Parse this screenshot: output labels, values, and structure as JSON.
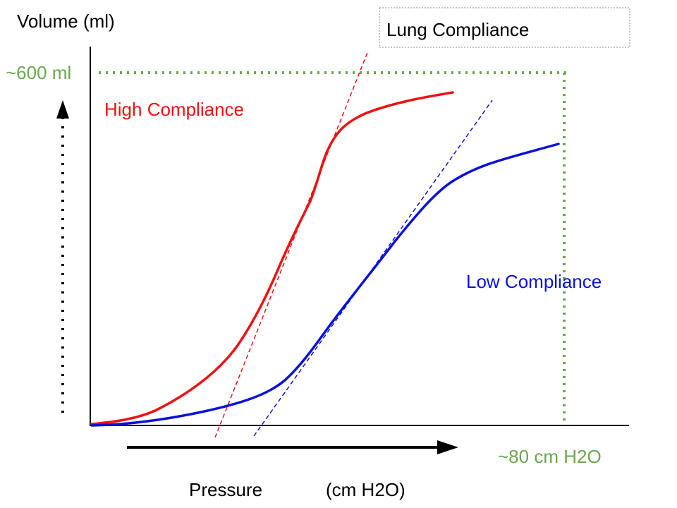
{
  "title": "Lung Compliance",
  "y_axis_label": "Volume (ml)",
  "x_axis_label_left": "Pressure",
  "x_axis_label_right": "(cm H2O)",
  "max_volume_label": "~600 ml",
  "max_pressure_label": "~80 cm H2O",
  "high_curve_label": "High Compliance",
  "low_curve_label": "Low Compliance",
  "colors": {
    "high": "#ee1111",
    "low": "#0a12d8",
    "reference": "#6aa84f",
    "axis": "#000000"
  }
}
